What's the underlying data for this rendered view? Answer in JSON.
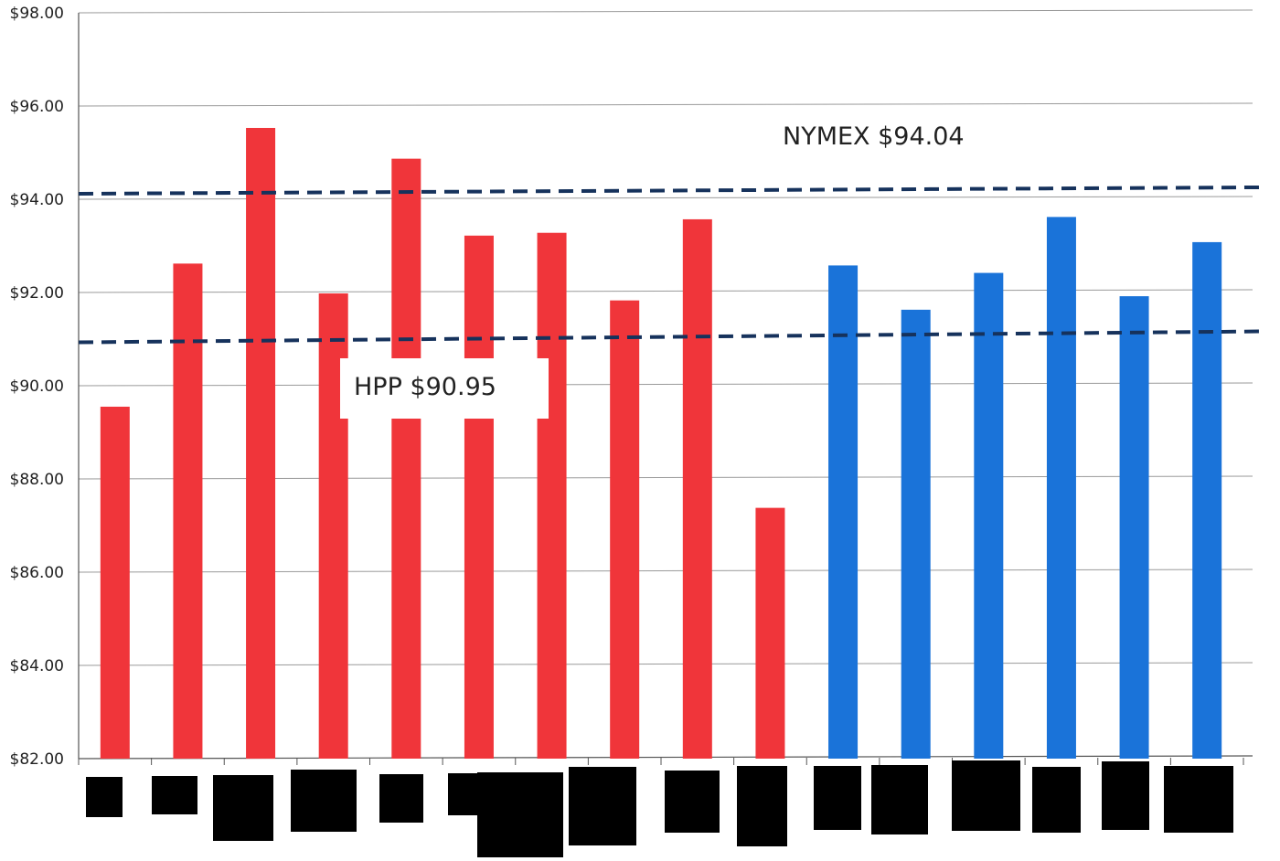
{
  "chart_data": {
    "type": "bar",
    "title": "",
    "xlabel": "",
    "ylabel": "",
    "ylim": [
      82,
      98
    ],
    "y_ticks": [
      "$82.00",
      "$84.00",
      "$86.00",
      "$88.00",
      "$90.00",
      "$92.00",
      "$94.00",
      "$96.00",
      "$98.00"
    ],
    "y_tick_values": [
      82,
      84,
      86,
      88,
      90,
      92,
      94,
      96,
      98
    ],
    "grid": true,
    "x_labels_redacted": true,
    "categories_count": 16,
    "values": [
      89.55,
      92.62,
      95.53,
      91.98,
      94.87,
      93.22,
      93.28,
      91.83,
      93.57,
      87.38,
      92.58,
      91.63,
      92.42,
      93.62,
      91.92,
      93.08
    ],
    "bar_colors": [
      "#f0353a",
      "#f0353a",
      "#f0353a",
      "#f0353a",
      "#f0353a",
      "#f0353a",
      "#f0353a",
      "#f0353a",
      "#f0353a",
      "#f0353a",
      "#1a73d9",
      "#1a73d9",
      "#1a73d9",
      "#1a73d9",
      "#1a73d9",
      "#1a73d9"
    ],
    "reference_lines": [
      {
        "label": "NYMEX $94.04",
        "value": 94.04,
        "style": "dashed",
        "color": "#16325c"
      },
      {
        "label": "HPP $90.95",
        "value": 90.95,
        "style": "dashed",
        "color": "#16325c"
      }
    ]
  }
}
